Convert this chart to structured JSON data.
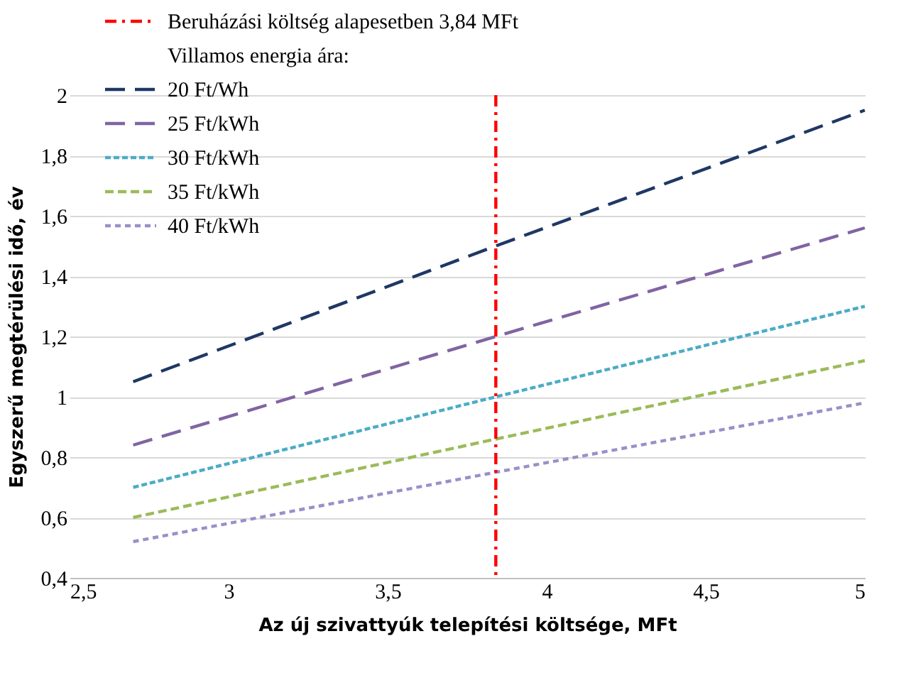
{
  "chart_data": {
    "type": "line",
    "xlabel": "Az új szivattyúk telepítési költsége, MFt",
    "ylabel": "Egyszerű megtérülési idő, év",
    "legend_title": "Villamos energia ára:",
    "legend": "top left",
    "grid": "y",
    "line_style": "dashed",
    "marker": "none",
    "x": [
      2.7,
      3.84,
      5
    ],
    "xlim": [
      2.5,
      5
    ],
    "xticks": [
      {
        "value": 2.5,
        "label": "2,5"
      },
      3,
      {
        "value": 3.5,
        "label": "3,5"
      },
      4,
      {
        "value": 4.5,
        "label": "4,5"
      },
      5
    ],
    "ylim": [
      0.4,
      2
    ],
    "yticks": [
      {
        "value": 0.4,
        "label": "0,4"
      },
      {
        "value": 0.6,
        "label": "0,6"
      },
      {
        "value": 0.8,
        "label": "0,8"
      },
      1,
      {
        "value": 1.2,
        "label": "1,2"
      },
      {
        "value": 1.4,
        "label": "1,4"
      },
      {
        "value": 1.6,
        "label": "1,6"
      },
      {
        "value": 1.8,
        "label": "1,8"
      },
      2
    ],
    "series": [
      {
        "name": "20 Ft/Wh",
        "color": "#1f3864",
        "values": [
          1.05,
          1.5,
          1.95
        ]
      },
      {
        "name": "25 Ft/kWh",
        "color": "#8064a2",
        "values": [
          0.84,
          1.2,
          1.56
        ]
      },
      {
        "name": "30 Ft/kWh",
        "color": "#4bacc6",
        "values": [
          0.7,
          1.0,
          1.3
        ]
      },
      {
        "name": "35 Ft/kWh",
        "color": "#9bbb59",
        "values": [
          0.6,
          0.86,
          1.12
        ]
      },
      {
        "name": "40 Ft/kWh",
        "color": "#9a8fc9",
        "values": [
          0.52,
          0.75,
          0.98
        ]
      }
    ],
    "ref_lines": [
      {
        "axis": "x",
        "value": 3.84,
        "label": "Beruházási költség alapesetben 3,84 MFt",
        "color": "#ff0000",
        "line_style": "dashed"
      }
    ]
  }
}
